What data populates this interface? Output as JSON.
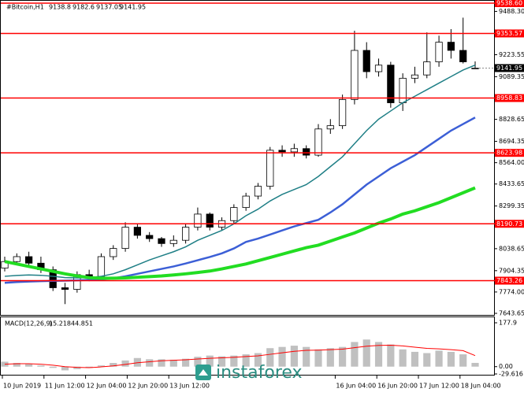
{
  "chart_data": [
    {
      "type": "candlestick",
      "title": "#Bitcoin,H1",
      "watermark": "instaforex",
      "x_labels": [
        "10 Jun 2019",
        "11 Jun 12:00",
        "12 Jun 04:00",
        "12 Jun 20:00",
        "13 Jun 12:00",
        "16 Jun 04:00",
        "16 Jun 20:00",
        "17 Jun 12:00",
        "18 Jun 04:00"
      ],
      "open": [
        7920,
        7960,
        7990,
        7950,
        7910,
        7800,
        7790,
        7880,
        7870,
        7990,
        8040,
        8170,
        8120,
        8100,
        8070,
        8090,
        8170,
        8250,
        8170,
        8210,
        8290,
        8360,
        8420,
        8640,
        8630,
        8650,
        8610,
        8770,
        8790,
        8950,
        9250,
        9120,
        9160,
        8930,
        9080,
        9100,
        9180,
        9300,
        9250,
        9138.8
      ],
      "high": [
        7990,
        8010,
        8020,
        7990,
        7930,
        7830,
        7900,
        7910,
        8010,
        8060,
        8200,
        8190,
        8140,
        8110,
        8120,
        8190,
        8290,
        8260,
        8230,
        8310,
        8380,
        8440,
        8660,
        8670,
        8680,
        8670,
        8800,
        8830,
        8980,
        9370,
        9300,
        9200,
        9180,
        9110,
        9150,
        9360,
        9340,
        9380,
        9450,
        9182.6
      ],
      "low": [
        7900,
        7940,
        7930,
        7890,
        7780,
        7700,
        7770,
        7840,
        7850,
        7970,
        8020,
        8100,
        8080,
        8050,
        8050,
        8070,
        8150,
        8150,
        8150,
        8190,
        8270,
        8340,
        8400,
        8600,
        8600,
        8590,
        8600,
        8740,
        8770,
        8920,
        9080,
        9090,
        8900,
        8880,
        9050,
        9080,
        9150,
        9200,
        9170,
        9137.05
      ],
      "close": [
        7960,
        7990,
        7950,
        7910,
        7800,
        7790,
        7880,
        7870,
        7990,
        8040,
        8170,
        8120,
        8100,
        8070,
        8090,
        8170,
        8250,
        8170,
        8210,
        8290,
        8360,
        8420,
        8640,
        8630,
        8650,
        8610,
        8770,
        8790,
        8950,
        9250,
        9120,
        9160,
        8930,
        9080,
        9100,
        9180,
        9300,
        9250,
        9180,
        9141.95
      ],
      "up_color": "#ffffff",
      "down_color": "#000000",
      "moving_averages": [
        {
          "color": "#1f7f86",
          "width": 1.5,
          "values": [
            7870,
            7875,
            7878,
            7876,
            7870,
            7862,
            7860,
            7862,
            7870,
            7885,
            7910,
            7940,
            7970,
            7995,
            8020,
            8050,
            8090,
            8120,
            8150,
            8190,
            8240,
            8280,
            8330,
            8370,
            8400,
            8430,
            8480,
            8540,
            8600,
            8680,
            8760,
            8830,
            8880,
            8930,
            8970,
            9010,
            9050,
            9090,
            9130,
            9160
          ]
        },
        {
          "color": "#3c5fd6",
          "width": 2.5,
          "values": [
            7830,
            7835,
            7838,
            7840,
            7842,
            7843,
            7845,
            7848,
            7850,
            7858,
            7870,
            7885,
            7900,
            7915,
            7930,
            7948,
            7968,
            7988,
            8010,
            8040,
            8080,
            8100,
            8125,
            8150,
            8175,
            8195,
            8215,
            8260,
            8310,
            8370,
            8430,
            8480,
            8530,
            8570,
            8610,
            8660,
            8710,
            8760,
            8800,
            8840
          ]
        },
        {
          "color": "#22dd22",
          "width": 4,
          "values": [
            7960,
            7945,
            7930,
            7915,
            7900,
            7885,
            7872,
            7862,
            7858,
            7858,
            7860,
            7864,
            7868,
            7872,
            7878,
            7885,
            7893,
            7902,
            7915,
            7930,
            7945,
            7965,
            7985,
            8005,
            8025,
            8045,
            8060,
            8085,
            8110,
            8135,
            8165,
            8195,
            8220,
            8250,
            8270,
            8295,
            8320,
            8350,
            8380,
            8410
          ]
        }
      ],
      "levels": [
        {
          "value": 9538.6,
          "label": "9538.60"
        },
        9353.57,
        8958.83,
        8623.98,
        8190.73,
        7843.26
      ],
      "level_color": "#ff0000",
      "ylim": [
        7643.65,
        9538.6
      ],
      "yticks": [
        {
          "value": 9488.3,
          "label": "9488.30"
        },
        9223.55,
        9089.35,
        8828.65,
        8694.35,
        {
          "value": 8564,
          "label": "8564.00"
        },
        8433.65,
        8299.35,
        8038.65,
        7904.35,
        {
          "value": 7774,
          "label": "7774.00"
        },
        7643.65
      ]
    },
    {
      "type": "macd",
      "title": "MACD(12,26,9)",
      "histogram": [
        20,
        15,
        10,
        5,
        -5,
        -15,
        -10,
        -5,
        5,
        15,
        25,
        35,
        30,
        30,
        28,
        32,
        40,
        45,
        42,
        45,
        50,
        55,
        75,
        80,
        85,
        80,
        70,
        75,
        80,
        100,
        110,
        100,
        90,
        70,
        60,
        55,
        65,
        60,
        50,
        15.218
      ],
      "signal": [
        10,
        12,
        12,
        10,
        6,
        0,
        -3,
        -4,
        -1,
        3,
        9,
        16,
        20,
        24,
        26,
        28,
        31,
        34,
        36,
        38,
        41,
        44,
        50,
        56,
        62,
        66,
        67,
        69,
        71,
        77,
        83,
        86,
        87,
        84,
        79,
        74,
        72,
        69,
        65,
        44.851
      ],
      "histogram_color": "#c0c0c0",
      "signal_color": "#ff0000",
      "ylim": [
        -29.616,
        177.9
      ],
      "yticks": [
        177.9,
        {
          "value": 0,
          "label": "0.00"
        },
        -29.616
      ]
    }
  ]
}
